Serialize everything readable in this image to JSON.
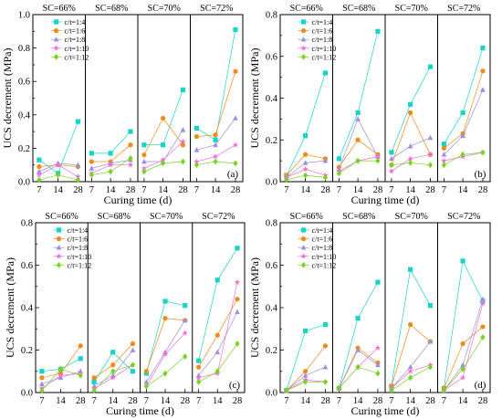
{
  "figure": {
    "xlabel": "Curing time (d)",
    "ylabel": "UCS decrement (MPa)"
  },
  "legend_entries": [
    {
      "name": "c/t=1:4",
      "color": "#19d3c6",
      "marker": "square"
    },
    {
      "name": "c/t=1:6",
      "color": "#f08a1c",
      "marker": "circle"
    },
    {
      "name": "c/t=1:8",
      "color": "#9d8fe0",
      "marker": "triangle"
    },
    {
      "name": "c/t=1:10",
      "color": "#f26fd8",
      "marker": "star"
    },
    {
      "name": "c/t=1:12",
      "color": "#77d421",
      "marker": "diamond"
    }
  ],
  "chart_data": [
    {
      "type": "scatter",
      "label": "(a)",
      "ylim": [
        0,
        1.0
      ],
      "yticks": [
        "0.0",
        "0.2",
        "0.4",
        "0.6",
        "0.8",
        "1.0"
      ],
      "x_ticks": [
        "7",
        "14",
        "28"
      ],
      "legend_placement": "top-right of first group",
      "groups": [
        {
          "title": "SC=66%",
          "series": [
            {
              "name": "c/t=1:4",
              "values": [
                0.13,
                0.05,
                0.36
              ]
            },
            {
              "name": "c/t=1:6",
              "values": [
                0.09,
                0.1,
                0.09
              ]
            },
            {
              "name": "c/t=1:8",
              "values": [
                0.06,
                0.11,
                0.1
              ]
            },
            {
              "name": "c/t=1:10",
              "values": [
                0.04,
                0.1,
                0.03
              ]
            },
            {
              "name": "c/t=1:12",
              "values": [
                0.01,
                0.04,
                0.01
              ]
            }
          ]
        },
        {
          "title": "SC=68%",
          "series": [
            {
              "name": "c/t=1:4",
              "values": [
                0.17,
                0.17,
                0.3
              ]
            },
            {
              "name": "c/t=1:6",
              "values": [
                0.12,
                0.12,
                0.22
              ]
            },
            {
              "name": "c/t=1:8",
              "values": [
                0.08,
                0.11,
                0.13
              ]
            },
            {
              "name": "c/t=1:10",
              "values": [
                0.05,
                0.1,
                0.1
              ]
            },
            {
              "name": "c/t=1:12",
              "values": [
                0.04,
                0.06,
                0.14
              ]
            }
          ]
        },
        {
          "title": "SC=70%",
          "series": [
            {
              "name": "c/t=1:4",
              "values": [
                0.22,
                0.22,
                0.55
              ]
            },
            {
              "name": "c/t=1:6",
              "values": [
                0.16,
                0.38,
                0.22
              ]
            },
            {
              "name": "c/t=1:8",
              "values": [
                0.12,
                0.12,
                0.31
              ]
            },
            {
              "name": "c/t=1:10",
              "values": [
                0.08,
                0.13,
                0.24
              ]
            },
            {
              "name": "c/t=1:12",
              "values": [
                0.06,
                0.11,
                0.12
              ]
            }
          ]
        },
        {
          "title": "SC=72%",
          "series": [
            {
              "name": "c/t=1:4",
              "values": [
                0.32,
                0.25,
                0.91
              ]
            },
            {
              "name": "c/t=1:6",
              "values": [
                0.27,
                0.28,
                0.66
              ]
            },
            {
              "name": "c/t=1:8",
              "values": [
                0.19,
                0.22,
                0.38
              ]
            },
            {
              "name": "c/t=1:10",
              "values": [
                0.12,
                0.15,
                0.22
              ]
            },
            {
              "name": "c/t=1:12",
              "values": [
                0.1,
                0.12,
                0.11
              ]
            }
          ]
        }
      ]
    },
    {
      "type": "scatter",
      "label": "(b)",
      "ylim": [
        0,
        0.8
      ],
      "yticks": [
        "0.0",
        "0.2",
        "0.4",
        "0.6",
        "0.8"
      ],
      "x_ticks": [
        "7",
        "14",
        "28"
      ],
      "legend_placement": "top-right of first group",
      "groups": [
        {
          "title": "SC=66%",
          "series": [
            {
              "name": "c/t=1:4",
              "values": [
                0.03,
                0.22,
                0.52
              ]
            },
            {
              "name": "c/t=1:6",
              "values": [
                0.03,
                0.13,
                0.11
              ]
            },
            {
              "name": "c/t=1:8",
              "values": [
                0.02,
                0.09,
                0.1
              ]
            },
            {
              "name": "c/t=1:10",
              "values": [
                0.02,
                0.06,
                0.03
              ]
            },
            {
              "name": "c/t=1:12",
              "values": [
                0.01,
                0.03,
                0.02
              ]
            }
          ]
        },
        {
          "title": "SC=68%",
          "series": [
            {
              "name": "c/t=1:4",
              "values": [
                0.11,
                0.33,
                0.72
              ]
            },
            {
              "name": "c/t=1:6",
              "values": [
                0.07,
                0.2,
                0.13
              ]
            },
            {
              "name": "c/t=1:8",
              "values": [
                0.06,
                0.3,
                0.12
              ]
            },
            {
              "name": "c/t=1:10",
              "values": [
                0.05,
                0.1,
                0.12
              ]
            },
            {
              "name": "c/t=1:12",
              "values": [
                0.04,
                0.1,
                0.1
              ]
            }
          ]
        },
        {
          "title": "SC=70%",
          "series": [
            {
              "name": "c/t=1:4",
              "values": [
                0.14,
                0.37,
                0.55
              ]
            },
            {
              "name": "c/t=1:6",
              "values": [
                0.08,
                0.33,
                0.13
              ]
            },
            {
              "name": "c/t=1:8",
              "values": [
                0.11,
                0.17,
                0.21
              ]
            },
            {
              "name": "c/t=1:10",
              "values": [
                0.05,
                0.11,
                0.13
              ]
            },
            {
              "name": "c/t=1:12",
              "values": [
                0.08,
                0.09,
                0.08
              ]
            }
          ]
        },
        {
          "title": "SC=72%",
          "series": [
            {
              "name": "c/t=1:4",
              "values": [
                0.18,
                0.33,
                0.64
              ]
            },
            {
              "name": "c/t=1:6",
              "values": [
                0.16,
                0.23,
                0.53
              ]
            },
            {
              "name": "c/t=1:8",
              "values": [
                0.13,
                0.22,
                0.44
              ]
            },
            {
              "name": "c/t=1:10",
              "values": [
                0.1,
                0.12,
                0.14
              ]
            },
            {
              "name": "c/t=1:12",
              "values": [
                0.08,
                0.13,
                0.14
              ]
            }
          ]
        }
      ]
    },
    {
      "type": "scatter",
      "label": "(c)",
      "ylim": [
        0,
        0.8
      ],
      "yticks": [
        "0.0",
        "0.2",
        "0.4",
        "0.6",
        "0.8"
      ],
      "x_ticks": [
        "7",
        "14",
        "28"
      ],
      "legend_placement": "top-right of first group",
      "groups": [
        {
          "title": "SC=66%",
          "series": [
            {
              "name": "c/t=1:4",
              "values": [
                0.1,
                0.11,
                0.16
              ]
            },
            {
              "name": "c/t=1:6",
              "values": [
                0.07,
                0.09,
                0.22
              ]
            },
            {
              "name": "c/t=1:8",
              "values": [
                0.04,
                0.07,
                0.1
              ]
            },
            {
              "name": "c/t=1:10",
              "values": [
                0.02,
                0.08,
                0.09
              ]
            },
            {
              "name": "c/t=1:12",
              "values": [
                0.01,
                0.11,
                0.08
              ]
            }
          ]
        },
        {
          "title": "SC=68%",
          "series": [
            {
              "name": "c/t=1:4",
              "values": [
                0.05,
                0.19,
                0.1
              ]
            },
            {
              "name": "c/t=1:6",
              "values": [
                0.07,
                0.13,
                0.23
              ]
            },
            {
              "name": "c/t=1:8",
              "values": [
                0.03,
                0.08,
                0.2
              ]
            },
            {
              "name": "c/t=1:10",
              "values": [
                0.02,
                0.07,
                0.13
              ]
            },
            {
              "name": "c/t=1:12",
              "values": [
                0.01,
                0.1,
                0.13
              ]
            }
          ]
        },
        {
          "title": "SC=70%",
          "series": [
            {
              "name": "c/t=1:4",
              "values": [
                0.09,
                0.43,
                0.41
              ]
            },
            {
              "name": "c/t=1:6",
              "values": [
                0.1,
                0.35,
                0.34
              ]
            },
            {
              "name": "c/t=1:8",
              "values": [
                0.05,
                0.19,
                0.34
              ]
            },
            {
              "name": "c/t=1:10",
              "values": [
                0.03,
                0.18,
                0.28
              ]
            },
            {
              "name": "c/t=1:12",
              "values": [
                0.03,
                0.09,
                0.17
              ]
            }
          ]
        },
        {
          "title": "SC=72%",
          "series": [
            {
              "name": "c/t=1:4",
              "values": [
                0.15,
                0.53,
                0.68
              ]
            },
            {
              "name": "c/t=1:6",
              "values": [
                0.12,
                0.27,
                0.44
              ]
            },
            {
              "name": "c/t=1:8",
              "values": [
                0.08,
                0.19,
                0.38
              ]
            },
            {
              "name": "c/t=1:10",
              "values": [
                0.07,
                0.09,
                0.52
              ]
            },
            {
              "name": "c/t=1:12",
              "values": [
                0.05,
                0.1,
                0.23
              ]
            }
          ]
        }
      ]
    },
    {
      "type": "scatter",
      "label": "(d)",
      "ylim": [
        0,
        0.8
      ],
      "yticks": [
        "0.0",
        "0.2",
        "0.4",
        "0.6",
        "0.8"
      ],
      "x_ticks": [
        "7",
        "14",
        "28"
      ],
      "legend_placement": "top-right of first group",
      "groups": [
        {
          "title": "SC=66%",
          "series": [
            {
              "name": "c/t=1:4",
              "values": [
                0.01,
                0.29,
                0.32
              ]
            },
            {
              "name": "c/t=1:6",
              "values": [
                0.01,
                0.1,
                0.22
              ]
            },
            {
              "name": "c/t=1:8",
              "values": [
                0.01,
                0.08,
                0.12
              ]
            },
            {
              "name": "c/t=1:10",
              "values": [
                0.01,
                0.06,
                0.05
              ]
            },
            {
              "name": "c/t=1:12",
              "values": [
                0.01,
                0.05,
                0.05
              ]
            }
          ]
        },
        {
          "title": "SC=68%",
          "series": [
            {
              "name": "c/t=1:4",
              "values": [
                0.02,
                0.35,
                0.52
              ]
            },
            {
              "name": "c/t=1:6",
              "values": [
                0.02,
                0.21,
                0.14
              ]
            },
            {
              "name": "c/t=1:8",
              "values": [
                0.02,
                0.2,
                0.13
              ]
            },
            {
              "name": "c/t=1:10",
              "values": [
                0.02,
                0.12,
                0.21
              ]
            },
            {
              "name": "c/t=1:12",
              "values": [
                0.02,
                0.12,
                0.09
              ]
            }
          ]
        },
        {
          "title": "SC=70%",
          "series": [
            {
              "name": "c/t=1:4",
              "values": [
                0.03,
                0.58,
                0.41
              ]
            },
            {
              "name": "c/t=1:6",
              "values": [
                0.03,
                0.32,
                0.24
              ]
            },
            {
              "name": "c/t=1:8",
              "values": [
                0.02,
                0.12,
                0.24
              ]
            },
            {
              "name": "c/t=1:10",
              "values": [
                0.02,
                0.1,
                0.13
              ]
            },
            {
              "name": "c/t=1:12",
              "values": [
                0.01,
                0.07,
                0.12
              ]
            }
          ]
        },
        {
          "title": "SC=72%",
          "series": [
            {
              "name": "c/t=1:4",
              "values": [
                0.02,
                0.62,
                0.43
              ]
            },
            {
              "name": "c/t=1:6",
              "values": [
                0.02,
                0.23,
                0.31
              ]
            },
            {
              "name": "c/t=1:8",
              "values": [
                0.01,
                0.13,
                0.44
              ]
            },
            {
              "name": "c/t=1:10",
              "values": [
                0.01,
                0.07,
                0.42
              ]
            },
            {
              "name": "c/t=1:12",
              "values": [
                0.01,
                0.11,
                0.26
              ]
            }
          ]
        }
      ]
    }
  ]
}
